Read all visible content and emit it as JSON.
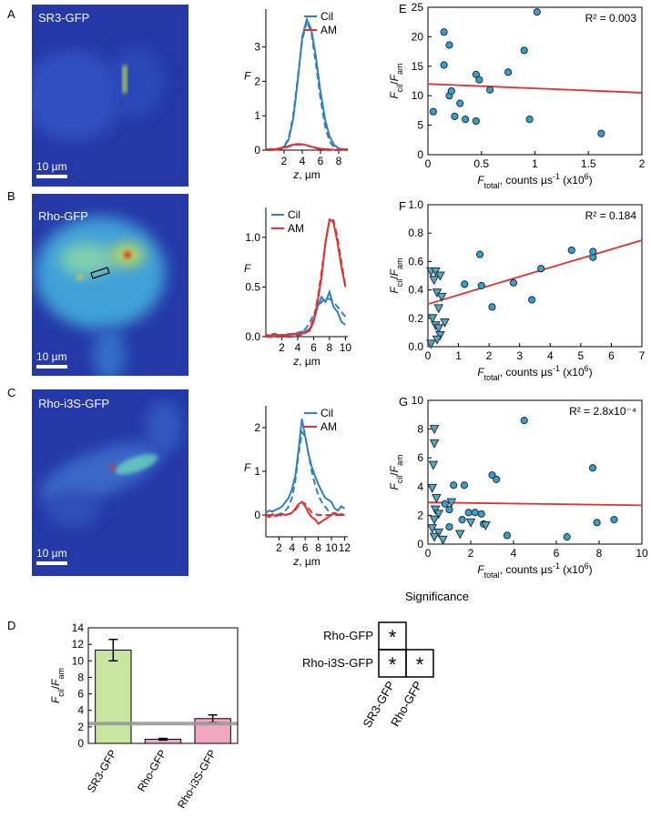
{
  "images": [
    {
      "panel": "A",
      "label": "SR3-GFP",
      "scale_bar": "10 µm"
    },
    {
      "panel": "B",
      "label": "Rho-GFP",
      "scale_bar": "10 µm"
    },
    {
      "panel": "C",
      "label": "Rho-i3S-GFP",
      "scale_bar": "10 µm"
    }
  ],
  "chart_data": [
    {
      "type": "line",
      "ylabel": "F",
      "xlabel": [
        "z",
        ", µm"
      ],
      "legend": "upper right",
      "x": [
        0,
        0.5,
        1,
        1.5,
        2,
        2.5,
        3,
        3.5,
        4,
        4.5,
        5,
        5.5,
        6,
        6.5,
        7,
        7.5,
        8,
        8.5,
        9
      ],
      "xlim": [
        0,
        9
      ],
      "xticks": [
        2,
        4,
        6,
        8
      ],
      "ylim": [
        0,
        4.1
      ],
      "yticks": [
        0,
        1,
        2,
        3
      ],
      "series": [
        {
          "name": "Cil",
          "color": "#2f7fc1",
          "values": [
            0.02,
            0.03,
            0.02,
            0.05,
            0.1,
            0.3,
            0.9,
            2.0,
            3.3,
            3.8,
            3.5,
            2.7,
            1.7,
            0.9,
            0.4,
            0.15,
            0.05,
            0.03,
            0.02
          ],
          "fit": [
            0,
            0,
            0.01,
            0.03,
            0.1,
            0.35,
            1.0,
            2.1,
            3.2,
            3.75,
            3.4,
            2.5,
            1.5,
            0.7,
            0.25,
            0.08,
            0.02,
            0,
            0
          ]
        },
        {
          "name": "AM",
          "color": "#e03030",
          "values": [
            0.01,
            0.02,
            0.03,
            0.05,
            0.08,
            0.12,
            0.16,
            0.18,
            0.17,
            0.14,
            0.1,
            0.07,
            0.04,
            0.03,
            0.02,
            0.01,
            0.01,
            0.01,
            0.01
          ],
          "fit": [
            0,
            0,
            0.01,
            0.03,
            0.06,
            0.1,
            0.14,
            0.16,
            0.16,
            0.14,
            0.1,
            0.06,
            0.03,
            0.01,
            0,
            0,
            0,
            0,
            0
          ]
        }
      ]
    },
    {
      "type": "line",
      "ylabel": "F",
      "xlabel": [
        "z",
        ", µm"
      ],
      "legend": "upper left",
      "x": [
        0,
        0.5,
        1,
        1.5,
        2,
        2.5,
        3,
        3.5,
        4,
        4.5,
        5,
        5.5,
        6,
        6.5,
        7,
        7.5,
        8,
        8.5,
        9,
        9.5,
        10
      ],
      "xlim": [
        0,
        10.3
      ],
      "xticks": [
        2,
        4,
        6,
        8,
        10
      ],
      "ylim": [
        0,
        1.3
      ],
      "yticks": [
        {
          "value": 0,
          "label": "0.0"
        },
        {
          "value": 0.5,
          "label": "0.5"
        },
        {
          "value": 1,
          "label": "1.0"
        }
      ],
      "series": [
        {
          "name": "Cil",
          "color": "#2f7fc1",
          "values": [
            0.02,
            0.01,
            0.03,
            0.02,
            0.01,
            0.02,
            0.03,
            0.02,
            0.04,
            0.05,
            0.05,
            0.08,
            0.15,
            0.3,
            0.4,
            0.35,
            0.45,
            0.3,
            0.25,
            0.15,
            0.12
          ],
          "fit": [
            0,
            0,
            0,
            0,
            0,
            0,
            0,
            0.01,
            0.02,
            0.04,
            0.08,
            0.14,
            0.22,
            0.3,
            0.35,
            0.38,
            0.38,
            0.35,
            0.3,
            0.25,
            0.2
          ]
        },
        {
          "name": "AM",
          "color": "#e03030",
          "values": [
            0.02,
            0.01,
            0.02,
            0.01,
            0.02,
            0.01,
            0.02,
            0.03,
            0.02,
            0.03,
            0.04,
            0.06,
            0.15,
            0.35,
            0.6,
            0.95,
            1.18,
            1.15,
            0.95,
            0.7,
            0.5
          ],
          "fit": [
            0,
            0,
            0,
            0,
            0,
            0,
            0,
            0,
            0.01,
            0.02,
            0.04,
            0.08,
            0.18,
            0.38,
            0.65,
            0.95,
            1.18,
            1.17,
            1.0,
            0.75,
            0.5
          ]
        }
      ]
    },
    {
      "type": "line",
      "ylabel": "F",
      "xlabel": [
        "z",
        ", µm"
      ],
      "legend": "upper right",
      "x": [
        0,
        0.5,
        1,
        1.5,
        2,
        2.5,
        3,
        3.5,
        4,
        4.5,
        5,
        5.5,
        6,
        6.5,
        7,
        7.5,
        8,
        8.5,
        9,
        9.5,
        10,
        10.5,
        11,
        11.5,
        12
      ],
      "xlim": [
        0,
        12.5
      ],
      "xticks": [
        2,
        4,
        6,
        8,
        10,
        12
      ],
      "ylim": [
        -0.5,
        2.5
      ],
      "yticks": [
        0,
        1,
        2
      ],
      "series": [
        {
          "name": "Cil",
          "color": "#2f7fc1",
          "values": [
            0.05,
            0.1,
            0.08,
            0.12,
            0.15,
            0.2,
            0.3,
            0.4,
            0.6,
            0.9,
            1.5,
            2.2,
            1.8,
            1.4,
            1.1,
            0.9,
            0.7,
            0.55,
            0.4,
            0.35,
            0.3,
            0.15,
            0.1,
            0.2,
            0.15
          ],
          "fit": [
            0,
            0,
            0,
            0,
            0.02,
            0.05,
            0.1,
            0.2,
            0.4,
            0.8,
            1.4,
            1.9,
            1.8,
            1.4,
            1.0,
            0.7,
            0.45,
            0.3,
            0.2,
            0.1,
            0.05,
            0.02,
            0.01,
            0,
            0
          ]
        },
        {
          "name": "AM",
          "color": "#e03030",
          "values": [
            0,
            -0.05,
            0.02,
            -0.03,
            0,
            0.02,
            0,
            0.02,
            0.05,
            0.15,
            0.25,
            0.3,
            0.2,
            0.05,
            -0.05,
            -0.1,
            -0.2,
            -0.15,
            -0.1,
            -0.05,
            0,
            0.05,
            0,
            0.02,
            0
          ],
          "fit": [
            0,
            0,
            0,
            0,
            0,
            0,
            0,
            0.02,
            0.05,
            0.12,
            0.22,
            0.3,
            0.25,
            0.15,
            0.06,
            0.02,
            0,
            0,
            0,
            0,
            0,
            0,
            0,
            0,
            0
          ]
        }
      ]
    },
    {
      "type": "scatter",
      "panel": "E",
      "annotation": "R² = 0.003",
      "ylabel": [
        "F",
        "cil",
        "/",
        "F",
        "am"
      ],
      "xlabel": [
        "F",
        "total",
        ", counts µs",
        "-1",
        " (x10",
        "6",
        ")"
      ],
      "xlim": [
        0,
        2
      ],
      "xticks": [
        0,
        0.5,
        1,
        1.5,
        2
      ],
      "ylim": [
        0,
        25
      ],
      "yticks": [
        0,
        5,
        10,
        15,
        20,
        25
      ],
      "series": [
        {
          "marker": "circle",
          "color": "#3a9fc8",
          "x": [
            0.05,
            0.15,
            0.15,
            0.2,
            0.2,
            0.22,
            0.25,
            0.3,
            0.35,
            0.45,
            0.48,
            0.45,
            0.58,
            0.75,
            0.9,
            0.95,
            1.02,
            1.62
          ],
          "y": [
            7.3,
            15.2,
            20.8,
            18.6,
            10,
            10.8,
            6.5,
            8.7,
            6,
            13.6,
            12.7,
            5.7,
            11,
            14,
            17.7,
            6,
            24.2,
            3.6
          ]
        }
      ],
      "fit": {
        "color": "#e03030",
        "x": [
          0,
          2
        ],
        "y": [
          12,
          10.5
        ]
      }
    },
    {
      "type": "scatter",
      "panel": "F",
      "annotation": "R² = 0.184",
      "ylabel": [
        "F",
        "cil",
        "/",
        "F",
        "am"
      ],
      "xlabel": [
        "F",
        "total",
        ", counts µs",
        "-1",
        " (x10",
        "6",
        ")"
      ],
      "xlim": [
        0,
        7
      ],
      "xticks": [
        0,
        1,
        2,
        3,
        4,
        5,
        6,
        7
      ],
      "ylim": [
        0,
        1
      ],
      "yticks": [
        {
          "value": 0,
          "label": "0.0"
        },
        {
          "value": 0.2,
          "label": "0.2"
        },
        {
          "value": 0.4,
          "label": "0.4"
        },
        {
          "value": 0.6,
          "label": "0.6"
        },
        {
          "value": 0.8,
          "label": "0.8"
        },
        {
          "value": 1,
          "label": "1.0"
        }
      ],
      "series": [
        {
          "marker": "circle",
          "color": "#3a9fc8",
          "x": [
            1.2,
            1.7,
            1.75,
            2.1,
            2.8,
            3.4,
            3.7,
            4.7,
            5.4,
            5.4
          ],
          "y": [
            0.44,
            0.65,
            0.43,
            0.28,
            0.45,
            0.33,
            0.55,
            0.68,
            0.63,
            0.67
          ]
        },
        {
          "marker": "triangle",
          "color": "#5aa8c0",
          "x": [
            0.1,
            0.25,
            0.4,
            0.2,
            0.3,
            0.45,
            0.35,
            0.15,
            0.25,
            0.35,
            0.55,
            0.4,
            0.3,
            0.1
          ],
          "y": [
            0.53,
            0.53,
            0.5,
            0.47,
            0.38,
            0.35,
            0.27,
            0.2,
            0.15,
            0.13,
            0.17,
            0.08,
            0.05,
            0.02
          ]
        }
      ],
      "fit": {
        "color": "#e03030",
        "x": [
          0,
          7
        ],
        "y": [
          0.3,
          0.75
        ]
      }
    },
    {
      "type": "scatter",
      "panel": "G",
      "annotation": "R² = 2.8x10⁻⁴",
      "ylabel": [
        "F",
        "cil",
        "/",
        "F",
        "am"
      ],
      "xlabel": [
        "F",
        "total",
        ", counts µs",
        "-1",
        " (x10",
        "6",
        ")"
      ],
      "xlim": [
        0,
        10
      ],
      "xticks": [
        0,
        2,
        4,
        6,
        8,
        10
      ],
      "ylim": [
        0,
        10
      ],
      "yticks": [
        0,
        2,
        4,
        6,
        8,
        10
      ],
      "series": [
        {
          "marker": "circle",
          "color": "#3a9fc8",
          "x": [
            1,
            1,
            1.2,
            1.7,
            1.6,
            1.9,
            2.2,
            2.5,
            2.6,
            3,
            3.2,
            3.7,
            4.5,
            6.5,
            7.7,
            7.9,
            8.7,
            0.8
          ],
          "y": [
            2.4,
            1.2,
            4.1,
            4.1,
            1.7,
            2.2,
            2.2,
            2.1,
            1.4,
            4.8,
            4.5,
            0.6,
            8.6,
            0.5,
            5.3,
            1.5,
            1.7,
            2.8
          ]
        },
        {
          "marker": "triangle",
          "color": "#5aa8c0",
          "x": [
            0.3,
            0.3,
            0.25,
            0.2,
            0.4,
            0.35,
            0.5,
            0.3,
            0.2,
            0.5,
            0.7,
            0.3,
            1.5,
            2.0,
            2.7,
            1.1
          ],
          "y": [
            8,
            7,
            5.5,
            3.9,
            3.2,
            2.4,
            2.1,
            1.7,
            1.1,
            0.8,
            0.3,
            0.5,
            0.7,
            1.5,
            1.3,
            2.9
          ]
        }
      ],
      "fit": {
        "color": "#e03030",
        "x": [
          0,
          10
        ],
        "y": [
          2.9,
          2.7
        ]
      }
    },
    {
      "type": "bar",
      "panel": "D",
      "ylabel": [
        "F",
        "cil",
        "/",
        "F",
        "am"
      ],
      "categories": [
        "SR3-GFP",
        "Rho-GFP",
        "Rho-i3S-GFP"
      ],
      "values": [
        11.3,
        0.5,
        3.0
      ],
      "errors": [
        1.3,
        0.1,
        0.45
      ],
      "colors": [
        "#c8e6a0",
        "#f4a8c0",
        "#f4a8c0"
      ],
      "ylim": [
        0,
        14
      ],
      "yticks": [
        0,
        2,
        4,
        6,
        8,
        10,
        12,
        14
      ],
      "reference_line": {
        "value": 2.4,
        "color": "#999999"
      }
    }
  ],
  "significance": {
    "title": "Significance",
    "rows": [
      {
        "label": "Rho-GFP",
        "cells": [
          "*"
        ]
      },
      {
        "label": "Rho-i3S-GFP",
        "cells": [
          "*",
          "*"
        ]
      }
    ],
    "columns": [
      "SR3-GFP",
      "Rho-GFP"
    ]
  }
}
